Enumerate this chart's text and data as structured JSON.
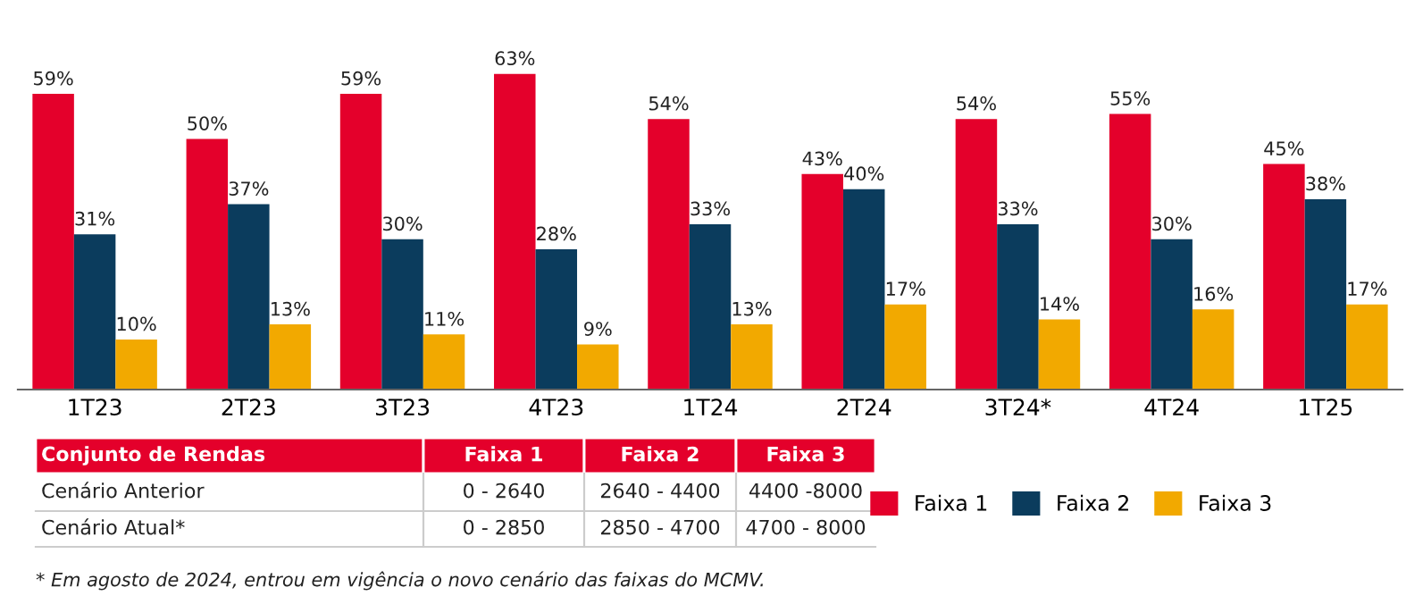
{
  "chart_data": {
    "type": "bar",
    "categories": [
      "1T23",
      "2T23",
      "3T23",
      "4T23",
      "1T24",
      "2T24",
      "3T24*",
      "4T24",
      "1T25"
    ],
    "series": [
      {
        "name": "Faixa 1",
        "color": "#e4002b",
        "values": [
          59,
          50,
          59,
          63,
          54,
          43,
          54,
          55,
          45
        ],
        "value_labels": [
          "59%",
          "50%",
          "59%",
          "63%",
          "54%",
          "43%",
          "54%",
          "55%",
          "45%"
        ]
      },
      {
        "name": "Faixa 2",
        "color": "#0b3c5d",
        "values": [
          31,
          37,
          30,
          28,
          33,
          40,
          33,
          30,
          38
        ],
        "value_labels": [
          "31%",
          "37%",
          "30%",
          "28%",
          "33%",
          "40%",
          "33%",
          "30%",
          "38%"
        ]
      },
      {
        "name": "Faixa 3",
        "color": "#f2a900",
        "values": [
          10,
          13,
          11,
          9,
          13,
          17,
          14,
          16,
          17
        ],
        "value_labels": [
          "10%",
          "13%",
          "11%",
          "9%",
          "13%",
          "17%",
          "14%",
          "16%",
          "17%"
        ]
      }
    ],
    "legend": "bottom",
    "grid": false,
    "annotations": [
      "Conjunto de Rendas",
      "Faixa 1",
      "Faixa 2",
      "Faixa 3",
      "Cenário Anterior",
      "0 - 2640",
      "2640 - 4400",
      "4400 -8000",
      "Cenário Atual*",
      "0 - 2850",
      "2850 - 4700",
      "4700 - 8000",
      "* Em agosto de 2024, entrou em vigência o novo cenário das faixas do MCMV."
    ]
  }
}
